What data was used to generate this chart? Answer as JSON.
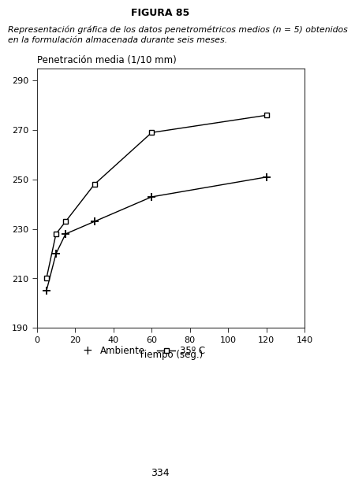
{
  "title": "FIGURA 85",
  "caption_line1": "Representación gráfica de los datos penetrométricos medios (n = 5) obtenidos",
  "caption_line2": "en la formulación almacenada durante seis meses.",
  "ylabel": "Penetración media (1/10 mm)",
  "xlabel": "Tiempo (seg.)",
  "page_number": "334",
  "ambiente_x": [
    5,
    10,
    15,
    30,
    60,
    120
  ],
  "ambiente_y": [
    205,
    220,
    228,
    233,
    243,
    251
  ],
  "temp35_x": [
    5,
    10,
    15,
    30,
    60,
    120
  ],
  "temp35_y": [
    210,
    228,
    233,
    248,
    269,
    276
  ],
  "xlim": [
    0,
    140
  ],
  "ylim": [
    190,
    295
  ],
  "yticks": [
    190,
    210,
    230,
    250,
    270,
    290
  ],
  "xticks": [
    0,
    20,
    40,
    60,
    80,
    100,
    120,
    140
  ],
  "legend_ambiente": "Ambiente",
  "legend_35c": "35º C",
  "bg_color": "#ffffff",
  "line_color": "#000000",
  "font_color": "#000000"
}
